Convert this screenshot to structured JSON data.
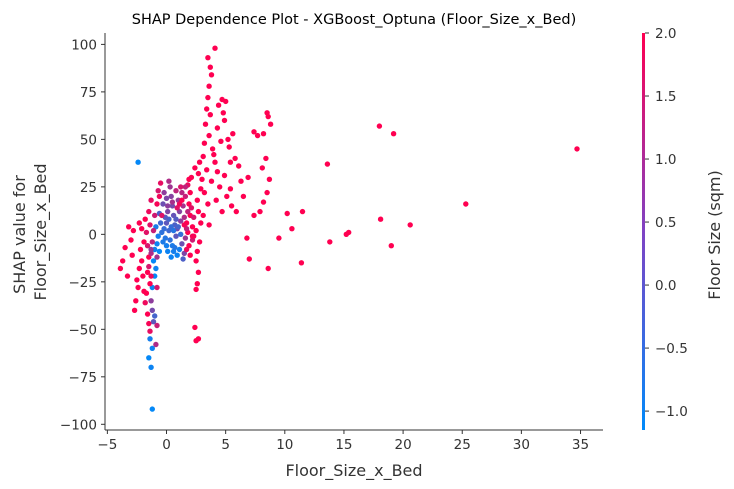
{
  "chart_data": {
    "type": "scatter",
    "title": "SHAP Dependence Plot - XGBoost_Optuna (Floor_Size_x_Bed)",
    "xlabel": "Floor_Size_x_Bed",
    "ylabel_lines": [
      "SHAP value for",
      "Floor_Size_x_Bed"
    ],
    "xlim": [
      -5.2,
      36.9
    ],
    "ylim": [
      -103,
      106
    ],
    "xticks": [
      -5,
      0,
      5,
      10,
      15,
      20,
      25,
      30,
      35
    ],
    "xtick_labels": [
      "−5",
      "0",
      "5",
      "10",
      "15",
      "20",
      "25",
      "30",
      "35"
    ],
    "yticks": [
      -100,
      -75,
      -50,
      -25,
      0,
      25,
      50,
      75,
      100
    ],
    "ytick_labels": [
      "−100",
      "−75",
      "−50",
      "−25",
      "0",
      "25",
      "50",
      "75",
      "100"
    ],
    "grid": false,
    "colorbar": {
      "label": "Floor Size (sqm)",
      "range": [
        -1.15,
        2.0
      ],
      "ticks": [
        -1.0,
        -0.5,
        0.0,
        0.5,
        1.0,
        1.5,
        2.0
      ],
      "tick_labels": [
        "−1.0",
        "−0.5",
        "0.0",
        "0.5",
        "1.0",
        "1.5",
        "2.0"
      ],
      "color_low": "#008AFA",
      "color_high": "#FF0051"
    },
    "points": [
      [
        34.7,
        45,
        2.0
      ],
      [
        25.3,
        16,
        2.0
      ],
      [
        20.6,
        5,
        2.0
      ],
      [
        19.2,
        53,
        2.0
      ],
      [
        19.0,
        -6,
        2.0
      ],
      [
        18.0,
        57,
        2.0
      ],
      [
        18.1,
        8,
        2.0
      ],
      [
        15.4,
        1,
        2.0
      ],
      [
        15.2,
        0,
        2.0
      ],
      [
        13.6,
        37,
        2.0
      ],
      [
        13.8,
        -4,
        2.0
      ],
      [
        11.5,
        12,
        2.0
      ],
      [
        11.4,
        -15,
        2.0
      ],
      [
        10.2,
        11,
        2.0
      ],
      [
        10.6,
        3,
        2.0
      ],
      [
        9.5,
        -2,
        2.0
      ],
      [
        8.5,
        64,
        2.0
      ],
      [
        8.6,
        62,
        2.0
      ],
      [
        8.8,
        58,
        2.0
      ],
      [
        8.2,
        53,
        2.0
      ],
      [
        7.4,
        54,
        2.0
      ],
      [
        7.7,
        52,
        2.0
      ],
      [
        8.4,
        40,
        2.0
      ],
      [
        8.1,
        35,
        2.0
      ],
      [
        8.7,
        29,
        2.0
      ],
      [
        8.5,
        22,
        2.0
      ],
      [
        8.2,
        17,
        2.0
      ],
      [
        7.9,
        12,
        2.0
      ],
      [
        8.6,
        -18,
        2.0
      ],
      [
        6.9,
        30,
        2.0
      ],
      [
        6.5,
        20,
        2.0
      ],
      [
        6.8,
        -2,
        2.0
      ],
      [
        7.4,
        10,
        2.0
      ],
      [
        7.0,
        -13,
        2.0
      ],
      [
        6.3,
        28,
        2.0
      ],
      [
        5.8,
        40,
        2.0
      ],
      [
        5.9,
        12,
        2.0
      ],
      [
        6.1,
        36,
        2.0
      ],
      [
        5.4,
        24,
        2.0
      ],
      [
        5.5,
        15,
        2.0
      ],
      [
        5.1,
        20,
        2.0
      ],
      [
        4.9,
        60,
        2.0
      ],
      [
        5.0,
        70,
        2.0
      ],
      [
        4.7,
        71,
        2.0
      ],
      [
        4.4,
        68,
        2.0
      ],
      [
        4.8,
        64,
        2.0
      ],
      [
        4.3,
        56,
        2.0
      ],
      [
        4.6,
        49,
        2.0
      ],
      [
        5.2,
        50,
        2.0
      ],
      [
        5.6,
        53,
        2.0
      ],
      [
        5.3,
        46,
        2.0
      ],
      [
        5.4,
        38,
        2.0
      ],
      [
        4.9,
        31,
        2.0
      ],
      [
        4.5,
        25,
        2.0
      ],
      [
        4.2,
        18,
        2.0
      ],
      [
        4.7,
        12,
        2.0
      ],
      [
        4.1,
        38,
        2.0
      ],
      [
        3.9,
        45,
        2.0
      ],
      [
        3.6,
        52,
        2.0
      ],
      [
        3.3,
        58,
        2.0
      ],
      [
        3.4,
        66,
        2.0
      ],
      [
        3.7,
        63,
        2.0
      ],
      [
        3.5,
        72,
        2.0
      ],
      [
        3.6,
        78,
        2.0
      ],
      [
        3.7,
        88,
        2.0
      ],
      [
        3.5,
        93,
        2.0
      ],
      [
        4.1,
        98,
        2.0
      ],
      [
        3.8,
        84,
        2.0
      ],
      [
        3.2,
        48,
        2.0
      ],
      [
        3.1,
        41,
        2.0
      ],
      [
        3.4,
        34,
        2.0
      ],
      [
        3.0,
        29,
        2.0
      ],
      [
        3.2,
        22,
        2.0
      ],
      [
        3.5,
        16,
        2.0
      ],
      [
        3.1,
        10,
        2.0
      ],
      [
        3.6,
        5,
        2.0
      ],
      [
        3.8,
        28,
        2.0
      ],
      [
        4.3,
        33,
        2.0
      ],
      [
        4.0,
        42,
        2.0
      ],
      [
        2.8,
        38,
        2.0
      ],
      [
        2.7,
        32,
        2.0
      ],
      [
        2.9,
        24,
        2.0
      ],
      [
        2.6,
        18,
        2.0
      ],
      [
        2.7,
        12,
        2.0
      ],
      [
        2.9,
        6,
        2.0
      ],
      [
        2.5,
        2,
        2.0
      ],
      [
        2.8,
        -4,
        2.0
      ],
      [
        2.6,
        -9,
        2.0
      ],
      [
        2.5,
        -14,
        2.0
      ],
      [
        2.7,
        -20,
        2.0
      ],
      [
        2.6,
        -26,
        2.0
      ],
      [
        2.5,
        -29,
        2.0
      ],
      [
        2.4,
        -49,
        2.0
      ],
      [
        2.5,
        -56,
        2.0
      ],
      [
        2.7,
        -55,
        2.0
      ],
      [
        2.3,
        -1,
        2.0
      ],
      [
        2.2,
        4,
        2.0
      ],
      [
        2.0,
        10,
        2.0
      ],
      [
        1.9,
        16,
        2.0
      ],
      [
        2.0,
        22,
        2.0
      ],
      [
        1.9,
        29,
        2.0
      ],
      [
        1.8,
        1,
        2.0
      ],
      [
        1.9,
        -6,
        2.0
      ],
      [
        1.7,
        6,
        2.0
      ],
      [
        2.3,
        9,
        1.5
      ],
      [
        2.1,
        14,
        1.6
      ],
      [
        2.2,
        -3,
        1.4
      ],
      [
        1.8,
        12,
        1.2
      ],
      [
        1.6,
        20,
        1.3
      ],
      [
        1.5,
        9,
        1.0
      ],
      [
        1.4,
        15,
        0.9
      ],
      [
        1.3,
        22,
        1.1
      ],
      [
        1.6,
        -2,
        0.8
      ],
      [
        1.7,
        3,
        1.2
      ],
      [
        1.2,
        7,
        0.6
      ],
      [
        1.1,
        12,
        0.5
      ],
      [
        1.0,
        18,
        0.7
      ],
      [
        0.9,
        3,
        0.3
      ],
      [
        1.3,
        -5,
        0.2
      ],
      [
        1.5,
        -10,
        0.4
      ],
      [
        1.4,
        -13,
        -0.2
      ],
      [
        0.8,
        -1,
        0.0
      ],
      [
        0.7,
        5,
        -0.2
      ],
      [
        0.6,
        10,
        0.1
      ],
      [
        0.5,
        15,
        0.3
      ],
      [
        0.4,
        20,
        0.5
      ],
      [
        0.3,
        25,
        0.8
      ],
      [
        0.2,
        28,
        1.0
      ],
      [
        0.1,
        12,
        0.4
      ],
      [
        0.0,
        6,
        0.0
      ],
      [
        0.2,
        2,
        -0.4
      ],
      [
        0.3,
        -3,
        -0.6
      ],
      [
        0.5,
        -6,
        -0.8
      ],
      [
        0.6,
        -9,
        -0.9
      ],
      [
        0.4,
        -12,
        -1.0
      ],
      [
        0.7,
        -7,
        -0.7
      ],
      [
        0.9,
        -11,
        -1.0
      ],
      [
        1.1,
        -8,
        -0.9
      ],
      [
        1.2,
        0,
        -0.5
      ],
      [
        1.0,
        4,
        -0.3
      ],
      [
        0.8,
        8,
        -0.1
      ],
      [
        0.6,
        2,
        -0.7
      ],
      [
        0.4,
        4,
        -0.5
      ],
      [
        0.2,
        8,
        -0.3
      ],
      [
        -0.1,
        9,
        -0.1
      ],
      [
        -0.2,
        3,
        -0.5
      ],
      [
        -0.1,
        -2,
        -0.7
      ],
      [
        0.0,
        -6,
        -0.9
      ],
      [
        0.1,
        -9,
        -1.0
      ],
      [
        -0.3,
        -4,
        -0.8
      ],
      [
        -0.4,
        1,
        -0.6
      ],
      [
        -0.5,
        6,
        -0.4
      ],
      [
        -0.6,
        11,
        -0.2
      ],
      [
        -0.3,
        16,
        0.2
      ],
      [
        -0.2,
        22,
        0.6
      ],
      [
        0.0,
        19,
        0.4
      ],
      [
        -0.7,
        -1,
        -0.9
      ],
      [
        -0.8,
        -5,
        -1.0
      ],
      [
        -0.6,
        -9,
        -1.1
      ],
      [
        -0.9,
        4,
        -0.8
      ],
      [
        -1.0,
        -8,
        -1.0
      ],
      [
        -1.1,
        -14,
        -1.1
      ],
      [
        -1.0,
        -22,
        -1.1
      ],
      [
        -1.2,
        -28,
        -1.0
      ],
      [
        -0.9,
        -18,
        -1.0
      ],
      [
        -1.3,
        -35,
        0.6
      ],
      [
        -1.2,
        -40,
        0.3
      ],
      [
        -1.1,
        -46,
        0.0
      ],
      [
        -1.0,
        -43,
        -0.3
      ],
      [
        -1.4,
        -55,
        -0.9
      ],
      [
        -1.2,
        -60,
        -1.0
      ],
      [
        -1.5,
        -65,
        -1.1
      ],
      [
        -1.3,
        -70,
        -1.0
      ],
      [
        -1.2,
        -92,
        -1.1
      ],
      [
        -2.4,
        38,
        -1.1
      ],
      [
        -1.5,
        -12,
        2.0
      ],
      [
        -1.6,
        -20,
        2.0
      ],
      [
        -1.4,
        -26,
        2.0
      ],
      [
        -1.7,
        -31,
        2.0
      ],
      [
        -1.8,
        -36,
        1.8
      ],
      [
        -1.9,
        -30,
        2.0
      ],
      [
        -1.6,
        -42,
        2.0
      ],
      [
        -1.5,
        -47,
        1.9
      ],
      [
        -1.4,
        -51,
        1.7
      ],
      [
        -1.3,
        -22,
        1.8
      ],
      [
        -2.0,
        -22,
        2.0
      ],
      [
        -2.1,
        -14,
        2.0
      ],
      [
        -2.2,
        -8,
        2.0
      ],
      [
        -2.3,
        -18,
        2.0
      ],
      [
        -2.5,
        -24,
        2.0
      ],
      [
        -2.6,
        -35,
        2.0
      ],
      [
        -2.7,
        -40,
        2.0
      ],
      [
        -2.4,
        -28,
        2.0
      ],
      [
        -2.9,
        -11,
        2.0
      ],
      [
        -3.0,
        -3,
        2.0
      ],
      [
        -3.2,
        4,
        2.0
      ],
      [
        -2.8,
        2,
        2.0
      ],
      [
        -3.5,
        -7,
        2.0
      ],
      [
        -3.7,
        -14,
        2.0
      ],
      [
        -3.9,
        -18,
        2.0
      ],
      [
        -3.3,
        -22,
        2.0
      ],
      [
        -2.3,
        6,
        2.0
      ],
      [
        -2.1,
        3,
        2.0
      ],
      [
        -1.8,
        8,
        2.0
      ],
      [
        -1.9,
        -4,
        2.0
      ],
      [
        -1.7,
        1,
        1.6
      ],
      [
        -1.6,
        -6,
        1.5
      ],
      [
        -1.5,
        12,
        1.8
      ],
      [
        -1.4,
        5,
        1.6
      ],
      [
        -1.3,
        18,
        1.7
      ],
      [
        -0.8,
        16,
        1.9
      ],
      [
        -0.6,
        20,
        1.8
      ],
      [
        -0.4,
        10,
        1.6
      ],
      [
        -0.5,
        27,
        1.7
      ],
      [
        -0.7,
        23,
        1.5
      ],
      [
        -1.0,
        10,
        1.4
      ],
      [
        -1.1,
        2,
        1.3
      ],
      [
        -1.2,
        -4,
        1.2
      ],
      [
        -1.3,
        -10,
        1.0
      ],
      [
        -0.8,
        -12,
        0.8
      ],
      [
        -1.5,
        -17,
        1.5
      ],
      [
        -1.3,
        -8,
        0.7
      ],
      [
        -0.9,
        -58,
        1.0
      ],
      [
        -0.8,
        -48,
        1.3
      ],
      [
        -0.8,
        -28,
        1.5
      ],
      [
        0.9,
        14,
        1.6
      ],
      [
        1.1,
        16,
        1.8
      ],
      [
        1.3,
        18,
        2.0
      ],
      [
        1.5,
        5,
        1.9
      ],
      [
        1.7,
        -8,
        1.8
      ],
      [
        1.8,
        26,
        1.7
      ],
      [
        2.1,
        30,
        2.0
      ],
      [
        2.4,
        35,
        2.0
      ],
      [
        2.2,
        -1,
        1.9
      ],
      [
        2.0,
        -11,
        2.0
      ],
      [
        1.6,
        25,
        1.2
      ],
      [
        1.2,
        25,
        1.5
      ],
      [
        0.8,
        23,
        1.2
      ],
      [
        0.5,
        17,
        0.9
      ],
      [
        0.1,
        15,
        0.6
      ]
    ]
  }
}
